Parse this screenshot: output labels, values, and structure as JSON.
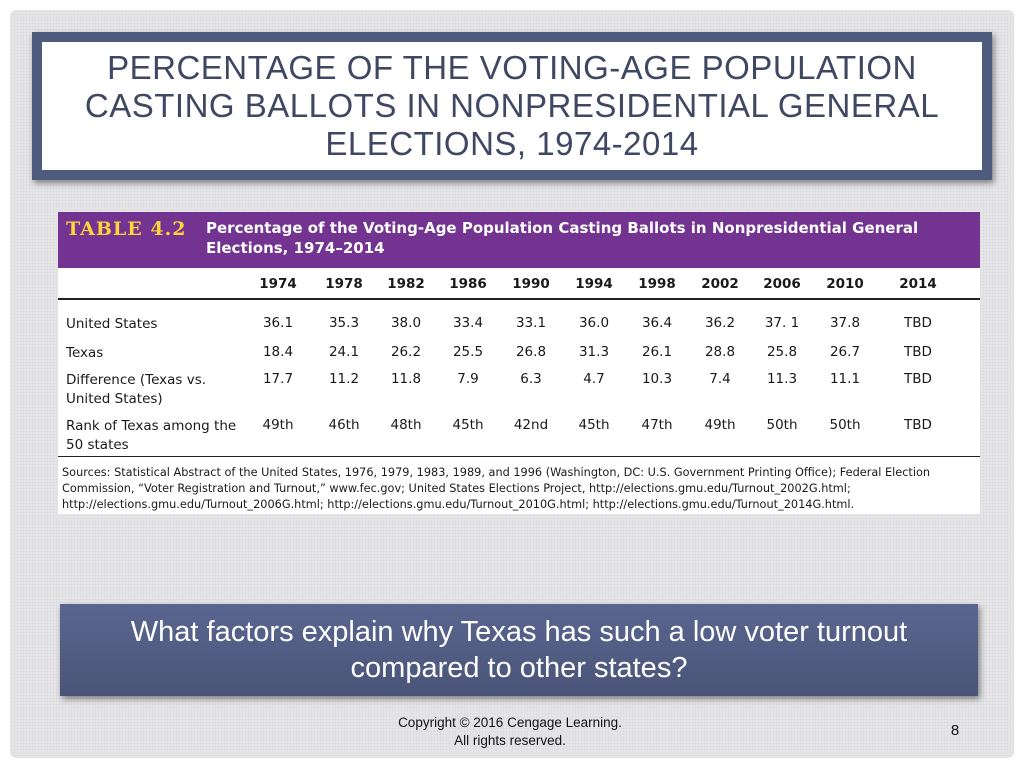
{
  "slide": {
    "title": "PERCENTAGE OF THE VOTING-AGE POPULATION CASTING BALLOTS IN NONPRESIDENTIAL GENERAL ELECTIONS, 1974-2014",
    "question": "What factors explain why Texas has such a low voter turnout compared to other states?",
    "copyright_line1": "Copyright © 2016 Cengage Learning.",
    "copyright_line2": "All rights reserved.",
    "page_number": "8"
  },
  "table": {
    "number": "TABLE 4.2",
    "caption": "Percentage of the Voting-Age Population Casting Ballots in Nonpresidential General Elections, 1974–2014",
    "years": [
      "1974",
      "1978",
      "1982",
      "1986",
      "1990",
      "1994",
      "1998",
      "2002",
      "2006",
      "2010",
      "2014"
    ],
    "rows": [
      {
        "label": "United States",
        "values": [
          "36.1",
          "35.3",
          "38.0",
          "33.4",
          "33.1",
          "36.0",
          "36.4",
          "36.2",
          "37. 1",
          "37.8",
          "TBD"
        ]
      },
      {
        "label": "Texas",
        "values": [
          "18.4",
          "24.1",
          "26.2",
          "25.5",
          "26.8",
          "31.3",
          "26.1",
          "28.8",
          "25.8",
          "26.7",
          "TBD"
        ]
      },
      {
        "label": "Difference (Texas vs. United States)",
        "values": [
          "17.7",
          "11.2",
          "11.8",
          "7.9",
          "6.3",
          "4.7",
          "10.3",
          "7.4",
          "11.3",
          "11.1",
          "TBD"
        ]
      },
      {
        "label": "Rank of Texas among the 50 states",
        "values": [
          "49th",
          "46th",
          "48th",
          "45th",
          "42nd",
          "45th",
          "47th",
          "49th",
          "50th",
          "50th",
          "TBD"
        ]
      }
    ],
    "sources": "Sources: Statistical Abstract of the United States, 1976, 1979, 1983, 1989, and 1996 (Washington, DC: U.S. Government Printing Office); Federal Election Commission, “Voter Registration and Turnout,” www.fec.gov; United States Elections Project, http://elections.gmu.edu/Turnout_2002G.html; http://elections.gmu.edu/Turnout_2006G.html; http://elections.gmu.edu/Turnout_2010G.html; http://elections.gmu.edu/Turnout_2014G.html."
  }
}
